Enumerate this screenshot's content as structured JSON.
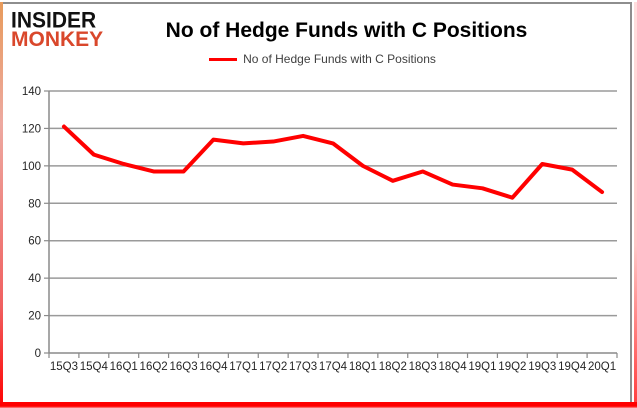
{
  "brand": {
    "line1": "INSIDER",
    "line2": "MONKEY"
  },
  "colors": {
    "series_red": "#ff0000",
    "brand_red": "#d9472b",
    "grid": "#9a9a9a",
    "axis": "#8a8a8a",
    "tick_text": "#262626",
    "legend_text": "#3f3f3f",
    "frame_gray": "#8e8e8e",
    "frame_red": "#ff0000"
  },
  "chart_data": {
    "type": "line",
    "title": "No of Hedge Funds with C Positions",
    "categories": [
      "15Q3",
      "15Q4",
      "16Q1",
      "16Q2",
      "16Q3",
      "16Q4",
      "17Q1",
      "17Q2",
      "17Q3",
      "17Q4",
      "18Q1",
      "18Q2",
      "18Q3",
      "18Q4",
      "19Q1",
      "19Q2",
      "19Q3",
      "19Q4",
      "20Q1"
    ],
    "series": [
      {
        "name": "No of Hedge Funds with C Positions",
        "color": "#ff0000",
        "values": [
          121,
          106,
          101,
          97,
          97,
          114,
          112,
          113,
          116,
          112,
          100,
          92,
          97,
          90,
          88,
          83,
          101,
          98,
          86
        ]
      }
    ],
    "xlabel": "",
    "ylabel": "",
    "ylim": [
      0,
      140
    ],
    "ytick_step": 20,
    "grid": true,
    "legend_position": "top"
  }
}
